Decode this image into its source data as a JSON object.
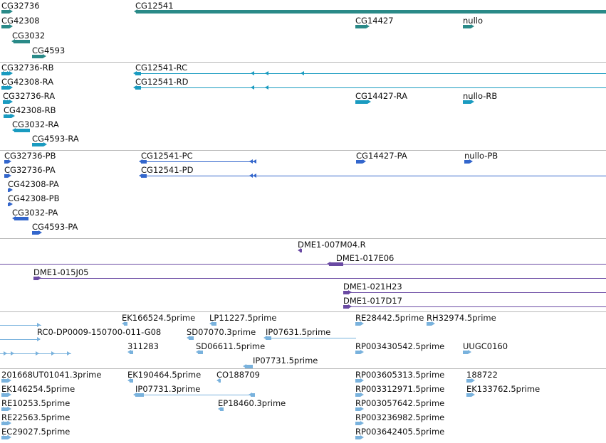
{
  "colors": {
    "gene": "#2a8a88",
    "mrna": "#1a9bc0",
    "protein": "#3366cc",
    "bac": "#6a4aa3",
    "est": "#79b2dd"
  },
  "tracks": [
    {
      "key": "gene",
      "features": [
        {
          "label": "CG32736"
        },
        {
          "label": "CG12541"
        },
        {
          "label": "CG42308"
        },
        {
          "label": "CG14427"
        },
        {
          "label": "nullo"
        },
        {
          "label": "CG3032"
        },
        {
          "label": "CG4593"
        }
      ]
    },
    {
      "key": "mrna",
      "features": [
        {
          "label": "CG32736-RB"
        },
        {
          "label": "CG12541-RC"
        },
        {
          "label": "CG42308-RA"
        },
        {
          "label": "CG12541-RD"
        },
        {
          "label": "CG32736-RA"
        },
        {
          "label": "CG14427-RA"
        },
        {
          "label": "nullo-RB"
        },
        {
          "label": "CG42308-RB"
        },
        {
          "label": "CG3032-RA"
        },
        {
          "label": "CG4593-RA"
        }
      ]
    },
    {
      "key": "protein",
      "features": [
        {
          "label": "CG32736-PB"
        },
        {
          "label": "CG12541-PC"
        },
        {
          "label": "CG14427-PA"
        },
        {
          "label": "nullo-PB"
        },
        {
          "label": "CG32736-PA"
        },
        {
          "label": "CG12541-PD"
        },
        {
          "label": "CG42308-PA"
        },
        {
          "label": "CG42308-PB"
        },
        {
          "label": "CG3032-PA"
        },
        {
          "label": "CG4593-PA"
        }
      ]
    },
    {
      "key": "bac",
      "features": [
        {
          "label": "DME1-007M04.R"
        },
        {
          "label": "DME1-017E06"
        },
        {
          "label": "DME1-015J05"
        },
        {
          "label": "DME1-021H23"
        },
        {
          "label": "DME1-017D17"
        }
      ]
    },
    {
      "key": "est_a",
      "features": [
        {
          "label": "EK166524.5prime"
        },
        {
          "label": "LP11227.5prime"
        },
        {
          "label": "RE28442.5prime"
        },
        {
          "label": "RH32974.5prime"
        },
        {
          "label": "RC0-DP0009-150700-011-G08"
        },
        {
          "label": "SD07070.3prime"
        },
        {
          "label": "IP07631.5prime"
        },
        {
          "label": "311283"
        },
        {
          "label": "SD06611.5prime"
        },
        {
          "label": "RP003430542.5prime"
        },
        {
          "label": "UUGC0160"
        },
        {
          "label": "IP07731.5prime"
        }
      ]
    },
    {
      "key": "est_b",
      "features": [
        {
          "label": "201668UT01041.3prime"
        },
        {
          "label": "EK190464.5prime"
        },
        {
          "label": "CO188709"
        },
        {
          "label": "RP003605313.5prime"
        },
        {
          "label": "188722"
        },
        {
          "label": "EK146254.5prime"
        },
        {
          "label": "IP07731.3prime"
        },
        {
          "label": "RP003312971.5prime"
        },
        {
          "label": "EK133762.5prime"
        },
        {
          "label": "RE10253.5prime"
        },
        {
          "label": "EP18460.3prime"
        },
        {
          "label": "RP003057642.5prime"
        },
        {
          "label": "RE22563.5prime"
        },
        {
          "label": "RP003236982.5prime"
        },
        {
          "label": "EC29027.5prime"
        },
        {
          "label": "RP003642405.5prime"
        }
      ]
    }
  ]
}
